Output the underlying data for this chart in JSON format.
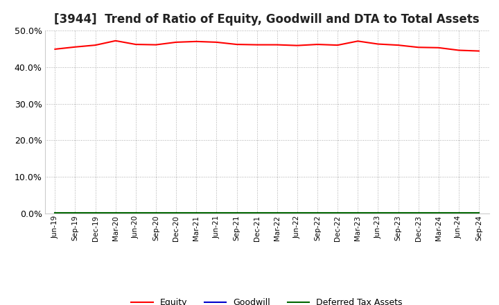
{
  "title": "[3944]  Trend of Ratio of Equity, Goodwill and DTA to Total Assets",
  "title_fontsize": 12,
  "background_color": "#ffffff",
  "plot_bg_color": "#ffffff",
  "grid_color": "#aaaaaa",
  "ylim": [
    0.0,
    0.5
  ],
  "yticks": [
    0.0,
    0.1,
    0.2,
    0.3,
    0.4,
    0.5
  ],
  "x_labels": [
    "Jun-19",
    "Sep-19",
    "Dec-19",
    "Mar-20",
    "Jun-20",
    "Sep-20",
    "Dec-20",
    "Mar-21",
    "Jun-21",
    "Sep-21",
    "Dec-21",
    "Mar-22",
    "Jun-22",
    "Sep-22",
    "Dec-22",
    "Mar-23",
    "Jun-23",
    "Sep-23",
    "Dec-23",
    "Mar-24",
    "Jun-24",
    "Sep-24"
  ],
  "equity": [
    0.449,
    0.455,
    0.46,
    0.472,
    0.462,
    0.461,
    0.468,
    0.47,
    0.468,
    0.462,
    0.461,
    0.461,
    0.459,
    0.462,
    0.46,
    0.471,
    0.463,
    0.46,
    0.454,
    0.453,
    0.446,
    0.444
  ],
  "goodwill": [
    0.0,
    0.0,
    0.0,
    0.0,
    0.0,
    0.0,
    0.0,
    0.0,
    0.0,
    0.0,
    0.0,
    0.0,
    0.0,
    0.0,
    0.0,
    0.0,
    0.0,
    0.0,
    0.0,
    0.0,
    0.0,
    0.0
  ],
  "dta": [
    0.002,
    0.002,
    0.002,
    0.002,
    0.002,
    0.002,
    0.002,
    0.002,
    0.002,
    0.002,
    0.002,
    0.002,
    0.002,
    0.002,
    0.002,
    0.002,
    0.002,
    0.002,
    0.002,
    0.002,
    0.002,
    0.002
  ],
  "equity_color": "#ff0000",
  "goodwill_color": "#0000cc",
  "dta_color": "#006600",
  "line_width": 1.5,
  "legend_labels": [
    "Equity",
    "Goodwill",
    "Deferred Tax Assets"
  ]
}
